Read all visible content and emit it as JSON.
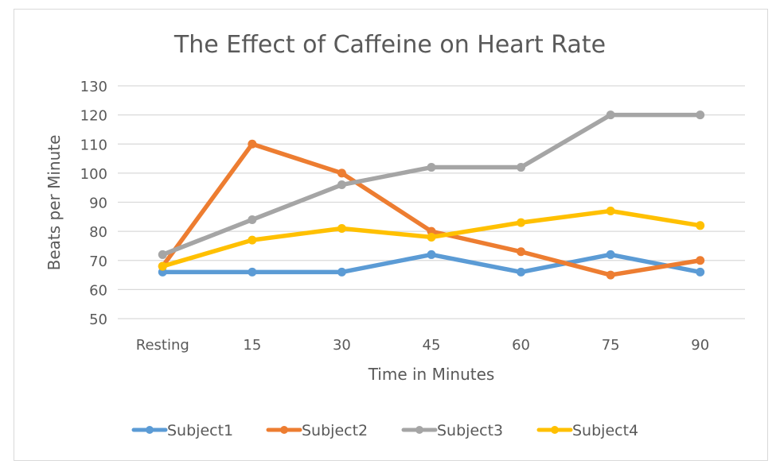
{
  "chart_data": {
    "type": "line",
    "title": "The Effect of Caffeine on Heart Rate",
    "xlabel": "Time in Minutes",
    "ylabel": "Beats per Minute",
    "categories": [
      "Resting",
      "15",
      "30",
      "45",
      "60",
      "75",
      "90"
    ],
    "ylim": [
      50,
      130
    ],
    "yticks": [
      "50",
      "60",
      "70",
      "80",
      "90",
      "100",
      "110",
      "120",
      "130"
    ],
    "grid": true,
    "legend_position": "bottom",
    "series": [
      {
        "name": "Subject1",
        "color": "#5B9BD5",
        "values": [
          66,
          66,
          66,
          72,
          66,
          72,
          66
        ]
      },
      {
        "name": "Subject2",
        "color": "#ED7D31",
        "values": [
          68,
          110,
          100,
          80,
          73,
          65,
          70
        ]
      },
      {
        "name": "Subject3",
        "color": "#A5A5A5",
        "values": [
          72,
          84,
          96,
          102,
          102,
          120,
          120
        ]
      },
      {
        "name": "Subject4",
        "color": "#FFC000",
        "values": [
          68,
          77,
          81,
          78,
          83,
          87,
          82
        ]
      }
    ]
  }
}
